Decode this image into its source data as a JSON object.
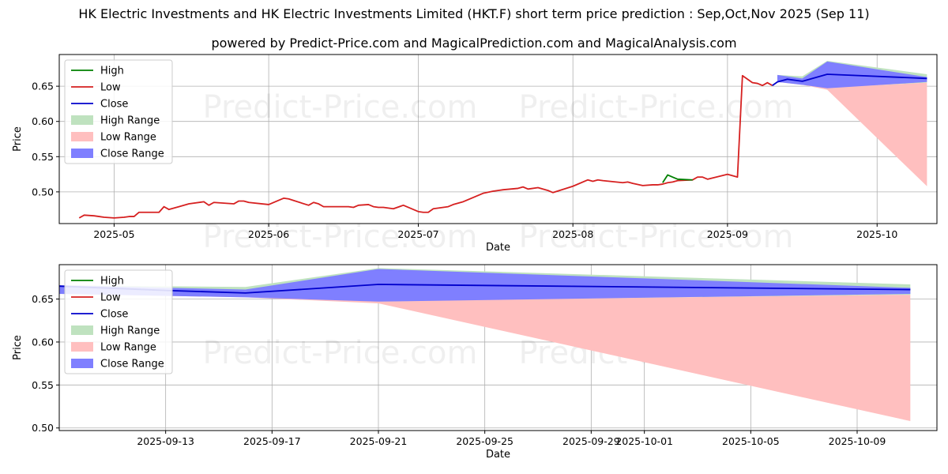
{
  "title": "HK Electric Investments and HK Electric Investments Limited (HKT.F) short term price prediction : Sep,Oct,Nov 2025 (Sep 11)",
  "subtitle": "powered by Predict-Price.com and MagicalPrediction.com and MagicalAnalysis.com",
  "watermark": "Predict-Price.com",
  "colors": {
    "high": "#008000",
    "low": "#d62020",
    "close": "#0000cc",
    "high_range": "#bfe2bf",
    "low_range": "#ffbfbf",
    "close_range": "#7f7fff"
  },
  "chart_data": [
    {
      "type": "line",
      "xlabel": "Date",
      "ylabel": "Price",
      "xlim": [
        "2025-04-20",
        "2025-10-13"
      ],
      "ylim": [
        0.455,
        0.695
      ],
      "yticks": [
        0.5,
        0.55,
        0.6,
        0.65
      ],
      "ytick_labels": [
        "0.50",
        "0.55",
        "0.60",
        "0.65"
      ],
      "xticks": [
        "2025-05-01",
        "2025-06-01",
        "2025-07-01",
        "2025-08-01",
        "2025-09-01",
        "2025-10-01"
      ],
      "xtick_labels": [
        "2025-05",
        "2025-06",
        "2025-07",
        "2025-08",
        "2025-09",
        "2025-10"
      ],
      "grid": true,
      "legend": "top-left",
      "legend_entries": [
        "High",
        "Low",
        "Close",
        "High Range",
        "Low Range",
        "Close Range"
      ],
      "series": [
        {
          "name": "Low",
          "x": [
            "2025-04-24",
            "2025-04-25",
            "2025-04-27",
            "2025-04-29",
            "2025-05-01",
            "2025-05-03",
            "2025-05-04",
            "2025-05-05",
            "2025-05-06",
            "2025-05-09",
            "2025-05-10",
            "2025-05-11",
            "2025-05-12",
            "2025-05-14",
            "2025-05-16",
            "2025-05-19",
            "2025-05-20",
            "2025-05-21",
            "2025-05-25",
            "2025-05-26",
            "2025-05-27",
            "2025-05-28",
            "2025-06-01",
            "2025-06-03",
            "2025-06-04",
            "2025-06-05",
            "2025-06-09",
            "2025-06-10",
            "2025-06-11",
            "2025-06-12",
            "2025-06-17",
            "2025-06-18",
            "2025-06-19",
            "2025-06-21",
            "2025-06-22",
            "2025-06-23",
            "2025-06-24",
            "2025-06-26",
            "2025-06-28",
            "2025-07-01",
            "2025-07-02",
            "2025-07-03",
            "2025-07-04",
            "2025-07-07",
            "2025-07-08",
            "2025-07-10",
            "2025-07-14",
            "2025-07-16",
            "2025-07-17",
            "2025-07-18",
            "2025-07-21",
            "2025-07-22",
            "2025-07-23",
            "2025-07-25",
            "2025-07-27",
            "2025-07-28",
            "2025-08-01",
            "2025-08-04",
            "2025-08-05",
            "2025-08-06",
            "2025-08-07",
            "2025-08-11",
            "2025-08-12",
            "2025-08-13",
            "2025-08-15",
            "2025-08-17",
            "2025-08-18",
            "2025-08-19",
            "2025-08-20",
            "2025-08-21",
            "2025-08-22",
            "2025-08-25",
            "2025-08-26",
            "2025-08-27",
            "2025-08-28",
            "2025-09-01",
            "2025-09-02",
            "2025-09-03",
            "2025-09-04",
            "2025-09-06",
            "2025-09-07",
            "2025-09-08",
            "2025-09-09",
            "2025-09-10"
          ],
          "values": [
            0.463,
            0.467,
            0.466,
            0.464,
            0.463,
            0.464,
            0.465,
            0.465,
            0.471,
            0.471,
            0.471,
            0.479,
            0.475,
            0.479,
            0.483,
            0.486,
            0.481,
            0.485,
            0.483,
            0.487,
            0.487,
            0.485,
            0.482,
            0.488,
            0.491,
            0.49,
            0.481,
            0.485,
            0.483,
            0.479,
            0.479,
            0.478,
            0.481,
            0.482,
            0.479,
            0.478,
            0.478,
            0.476,
            0.481,
            0.472,
            0.471,
            0.471,
            0.476,
            0.479,
            0.482,
            0.486,
            0.498,
            0.501,
            0.502,
            0.503,
            0.505,
            0.507,
            0.504,
            0.506,
            0.502,
            0.499,
            0.508,
            0.517,
            0.515,
            0.517,
            0.516,
            0.513,
            0.514,
            0.512,
            0.509,
            0.51,
            0.51,
            0.511,
            0.513,
            0.514,
            0.516,
            0.517,
            0.521,
            0.521,
            0.518,
            0.525,
            0.523,
            0.521,
            0.665,
            0.655,
            0.654,
            0.651,
            0.655,
            0.651
          ]
        },
        {
          "name": "High",
          "x": [
            "2025-08-19",
            "2025-08-20",
            "2025-08-21",
            "2025-08-22",
            "2025-08-25"
          ],
          "values": [
            0.513,
            0.524,
            0.521,
            0.518,
            0.517
          ]
        },
        {
          "name": "Close",
          "x": [
            "2025-09-10",
            "2025-09-11",
            "2025-09-13",
            "2025-09-16",
            "2025-09-21",
            "2025-10-11"
          ],
          "values": [
            0.651,
            0.656,
            0.66,
            0.657,
            0.667,
            0.661
          ]
        }
      ],
      "ranges": [
        {
          "name": "High Range",
          "x": [
            "2025-09-11",
            "2025-09-16",
            "2025-09-21",
            "2025-10-11"
          ],
          "upper": [
            0.666,
            0.664,
            0.686,
            0.667
          ],
          "lower": [
            0.656,
            0.654,
            0.648,
            0.655
          ]
        },
        {
          "name": "Low Range",
          "x": [
            "2025-09-11",
            "2025-09-16",
            "2025-09-21",
            "2025-10-11"
          ],
          "upper": [
            0.666,
            0.654,
            0.648,
            0.655
          ],
          "lower": [
            0.656,
            0.652,
            0.645,
            0.508
          ]
        },
        {
          "name": "Close Range",
          "x": [
            "2025-09-11",
            "2025-09-16",
            "2025-09-21",
            "2025-10-11"
          ],
          "upper": [
            0.666,
            0.661,
            0.685,
            0.663
          ],
          "lower": [
            0.656,
            0.652,
            0.647,
            0.656
          ]
        }
      ]
    },
    {
      "type": "line",
      "xlabel": "Date",
      "ylabel": "Price",
      "xlim": [
        "2025-09-09",
        "2025-10-12"
      ],
      "ylim": [
        0.497,
        0.69
      ],
      "yticks": [
        0.5,
        0.55,
        0.6,
        0.65
      ],
      "ytick_labels": [
        "0.50",
        "0.55",
        "0.60",
        "0.65"
      ],
      "xticks": [
        "2025-09-13",
        "2025-09-17",
        "2025-09-21",
        "2025-09-25",
        "2025-09-29",
        "2025-10-01",
        "2025-10-05",
        "2025-10-09"
      ],
      "xtick_labels": [
        "2025-09-13",
        "2025-09-17",
        "2025-09-21",
        "2025-09-25",
        "2025-09-29",
        "2025-10-01",
        "2025-10-05",
        "2025-10-09"
      ],
      "grid": true,
      "legend": "top-left",
      "legend_entries": [
        "High",
        "Low",
        "Close",
        "High Range",
        "Low Range",
        "Close Range"
      ],
      "series": [
        {
          "name": "Close",
          "x": [
            "2025-09-09",
            "2025-09-13",
            "2025-09-16",
            "2025-09-21",
            "2025-10-11"
          ],
          "values": [
            0.665,
            0.66,
            0.657,
            0.667,
            0.661
          ]
        }
      ],
      "ranges": [
        {
          "name": "High Range",
          "x": [
            "2025-09-09",
            "2025-09-16",
            "2025-09-21",
            "2025-10-11"
          ],
          "upper": [
            0.666,
            0.664,
            0.686,
            0.667
          ],
          "lower": [
            0.656,
            0.654,
            0.648,
            0.655
          ]
        },
        {
          "name": "Low Range",
          "x": [
            "2025-09-09",
            "2025-09-16",
            "2025-09-21",
            "2025-10-11"
          ],
          "upper": [
            0.666,
            0.654,
            0.648,
            0.655
          ],
          "lower": [
            0.656,
            0.652,
            0.645,
            0.508
          ]
        },
        {
          "name": "Close Range",
          "x": [
            "2025-09-09",
            "2025-09-16",
            "2025-09-21",
            "2025-10-11"
          ],
          "upper": [
            0.666,
            0.661,
            0.685,
            0.663
          ],
          "lower": [
            0.656,
            0.652,
            0.647,
            0.656
          ]
        }
      ]
    }
  ]
}
